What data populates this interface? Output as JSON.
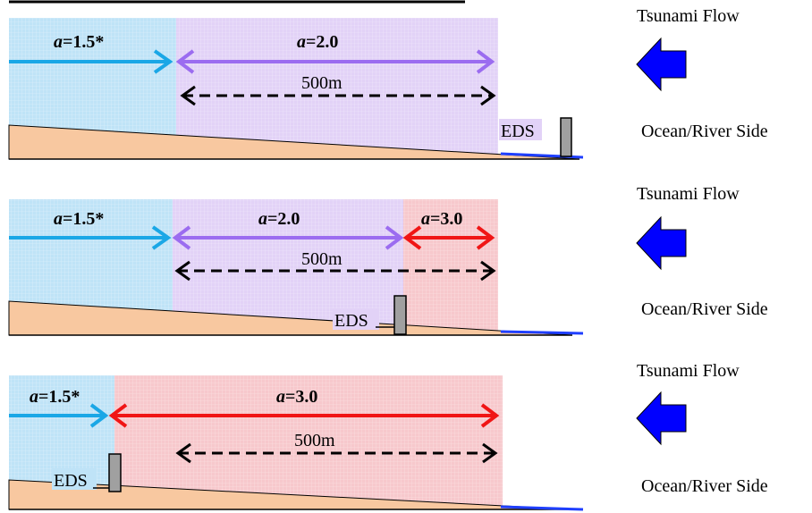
{
  "panels": [
    {
      "zones": [
        {
          "label_var": "a",
          "label_val": "=1.5*",
          "color": "#bfe3f7"
        },
        {
          "label_var": "a",
          "label_val": "=2.0",
          "color": "#e2d2f7"
        }
      ],
      "distance_label": "500m",
      "eds_label": "EDS",
      "flow_label": "Tsunami Flow",
      "side_label": "Ocean/River Side"
    },
    {
      "zones": [
        {
          "label_var": "a",
          "label_val": "=1.5*",
          "color": "#bfe3f7"
        },
        {
          "label_var": "a",
          "label_val": "=2.0",
          "color": "#e2d2f7"
        },
        {
          "label_var": "a",
          "label_val": "=3.0",
          "color": "#f7c8cc"
        }
      ],
      "distance_label": "500m",
      "eds_label": "EDS",
      "flow_label": "Tsunami Flow",
      "side_label": "Ocean/River Side"
    },
    {
      "zones": [
        {
          "label_var": "a",
          "label_val": "=1.5*",
          "color": "#bfe3f7"
        },
        {
          "label_var": "a",
          "label_val": "=3.0",
          "color": "#f7c8cc"
        }
      ],
      "distance_label": "500m",
      "eds_label": "EDS",
      "flow_label": "Tsunami Flow",
      "side_label": "Ocean/River Side"
    }
  ],
  "colors": {
    "arrow_blue": "#1aa7e6",
    "arrow_purple": "#9b6cf0",
    "arrow_red": "#f01515",
    "ground": "#f8c8a0",
    "water": "#1f3fff",
    "flow_arrow": "#0000ff",
    "eds_fill": "#a0a0a0"
  }
}
